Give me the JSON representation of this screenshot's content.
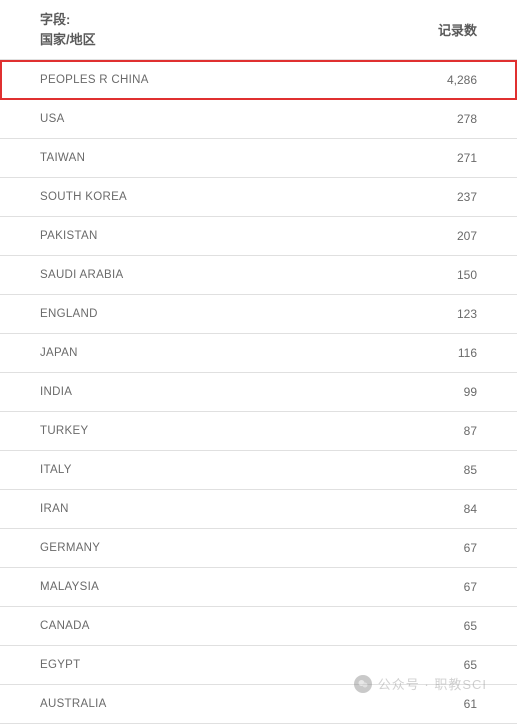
{
  "header": {
    "field_label": "字段:",
    "field_name": "国家/地区",
    "count_label": "记录数"
  },
  "rows": [
    {
      "label": "PEOPLES R CHINA",
      "value": "4,286",
      "highlighted": true
    },
    {
      "label": "USA",
      "value": "278",
      "highlighted": false
    },
    {
      "label": "TAIWAN",
      "value": "271",
      "highlighted": false
    },
    {
      "label": "SOUTH KOREA",
      "value": "237",
      "highlighted": false
    },
    {
      "label": "PAKISTAN",
      "value": "207",
      "highlighted": false
    },
    {
      "label": "SAUDI ARABIA",
      "value": "150",
      "highlighted": false
    },
    {
      "label": "ENGLAND",
      "value": "123",
      "highlighted": false
    },
    {
      "label": "JAPAN",
      "value": "116",
      "highlighted": false
    },
    {
      "label": "INDIA",
      "value": "99",
      "highlighted": false
    },
    {
      "label": "TURKEY",
      "value": "87",
      "highlighted": false
    },
    {
      "label": "ITALY",
      "value": "85",
      "highlighted": false
    },
    {
      "label": "IRAN",
      "value": "84",
      "highlighted": false
    },
    {
      "label": "GERMANY",
      "value": "67",
      "highlighted": false
    },
    {
      "label": "MALAYSIA",
      "value": "67",
      "highlighted": false
    },
    {
      "label": "CANADA",
      "value": "65",
      "highlighted": false
    },
    {
      "label": "EGYPT",
      "value": "65",
      "highlighted": false
    },
    {
      "label": "AUSTRALIA",
      "value": "61",
      "highlighted": false
    }
  ],
  "watermark": {
    "text": "公众号 · 职教SCI"
  },
  "colors": {
    "highlight_border": "#e03030",
    "row_border": "#e0e0e0",
    "text_header": "#5a5a5a",
    "text_body": "#6a6a6a",
    "background": "#ffffff"
  }
}
